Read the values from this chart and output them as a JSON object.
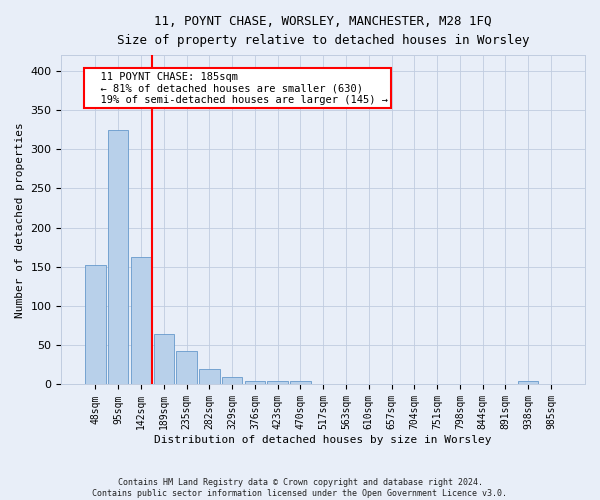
{
  "title1": "11, POYNT CHASE, WORSLEY, MANCHESTER, M28 1FQ",
  "title2": "Size of property relative to detached houses in Worsley",
  "xlabel": "Distribution of detached houses by size in Worsley",
  "ylabel": "Number of detached properties",
  "footer1": "Contains HM Land Registry data © Crown copyright and database right 2024.",
  "footer2": "Contains public sector information licensed under the Open Government Licence v3.0.",
  "bar_labels": [
    "48sqm",
    "95sqm",
    "142sqm",
    "189sqm",
    "235sqm",
    "282sqm",
    "329sqm",
    "376sqm",
    "423sqm",
    "470sqm",
    "517sqm",
    "563sqm",
    "610sqm",
    "657sqm",
    "704sqm",
    "751sqm",
    "798sqm",
    "844sqm",
    "891sqm",
    "938sqm",
    "985sqm"
  ],
  "bar_values": [
    152,
    325,
    163,
    64,
    43,
    20,
    9,
    5,
    4,
    5,
    0,
    0,
    0,
    0,
    0,
    0,
    0,
    0,
    0,
    4,
    0
  ],
  "bar_color": "#b8d0ea",
  "bar_edge_color": "#6699cc",
  "property_line_x": 2.5,
  "annotation_title": "11 POYNT CHASE: 185sqm",
  "annotation_line1": "← 81% of detached houses are smaller (630)",
  "annotation_line2": "19% of semi-detached houses are larger (145) →",
  "annotation_box_color": "white",
  "annotation_border_color": "red",
  "vline_color": "red",
  "bg_color": "#e8eef8",
  "grid_color": "#c0cce0",
  "ylim": [
    0,
    420
  ],
  "yticks": [
    0,
    50,
    100,
    150,
    200,
    250,
    300,
    350,
    400
  ]
}
